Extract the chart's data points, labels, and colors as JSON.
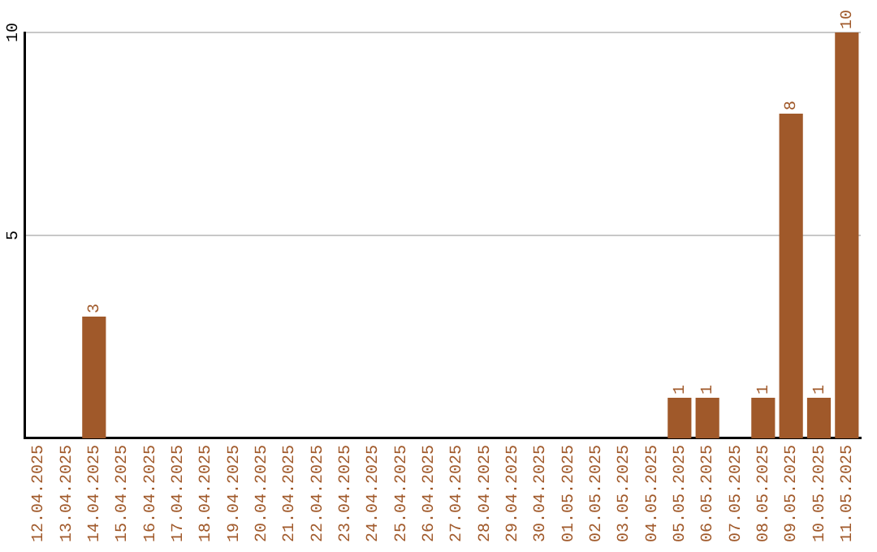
{
  "chart_data": {
    "type": "bar",
    "categories": [
      "12.04.2025",
      "13.04.2025",
      "14.04.2025",
      "15.04.2025",
      "16.04.2025",
      "17.04.2025",
      "18.04.2025",
      "19.04.2025",
      "20.04.2025",
      "21.04.2025",
      "22.04.2025",
      "23.04.2025",
      "24.04.2025",
      "25.04.2025",
      "26.04.2025",
      "27.04.2025",
      "28.04.2025",
      "29.04.2025",
      "30.04.2025",
      "01.05.2025",
      "02.05.2025",
      "03.05.2025",
      "04.05.2025",
      "05.05.2025",
      "06.05.2025",
      "07.05.2025",
      "08.05.2025",
      "09.05.2025",
      "10.05.2025",
      "11.05.2025"
    ],
    "values": [
      0,
      0,
      3,
      0,
      0,
      0,
      0,
      0,
      0,
      0,
      0,
      0,
      0,
      0,
      0,
      0,
      0,
      0,
      0,
      0,
      0,
      0,
      0,
      1,
      1,
      0,
      1,
      8,
      1,
      10
    ],
    "value_labels": [
      null,
      null,
      "3",
      null,
      null,
      null,
      null,
      null,
      null,
      null,
      null,
      null,
      null,
      null,
      null,
      null,
      null,
      null,
      null,
      null,
      null,
      null,
      null,
      "1",
      "1",
      null,
      "1",
      "8",
      "1",
      "10"
    ],
    "color": "#a0592a",
    "ylim": [
      0,
      10
    ],
    "yticks": [
      5,
      10
    ],
    "grid": "y",
    "legend": false
  }
}
